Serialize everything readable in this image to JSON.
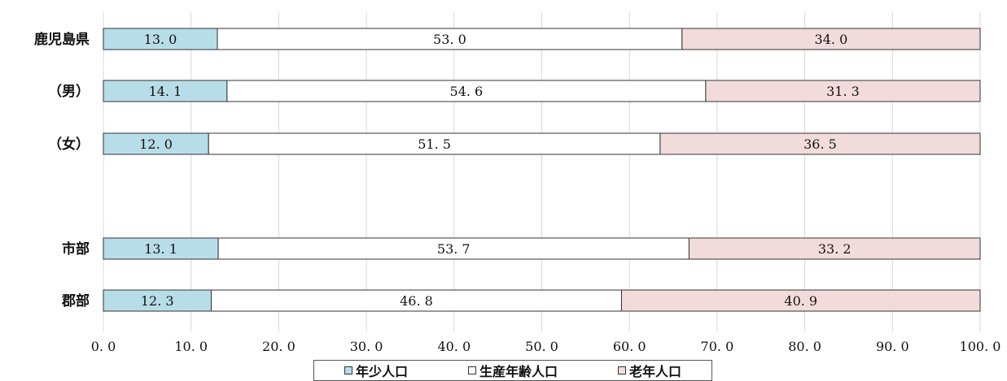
{
  "chart_data": {
    "type": "bar",
    "orientation": "horizontal",
    "stacked": true,
    "categories": [
      "鹿児島県",
      "（男）",
      "（女）",
      "市部",
      "郡部"
    ],
    "series": [
      {
        "name": "年少人口",
        "values": [
          13.0,
          14.1,
          12.0,
          13.1,
          12.3
        ],
        "labels": [
          "13. 0",
          "14. 1",
          "12. 0",
          "13. 1",
          "12. 3"
        ],
        "color": "#b7dde8"
      },
      {
        "name": "生産年齢人口",
        "values": [
          53.0,
          54.6,
          51.5,
          53.7,
          46.8
        ],
        "labels": [
          "53. 0",
          "54. 6",
          "51. 5",
          "53. 7",
          "46. 8"
        ],
        "color": "#ffffff"
      },
      {
        "name": "老年人口",
        "values": [
          34.0,
          31.3,
          36.5,
          33.2,
          40.9
        ],
        "labels": [
          "34. 0",
          "31. 3",
          "36. 5",
          "33. 2",
          "40. 9"
        ],
        "color": "#f2dcdb"
      }
    ],
    "xlim": [
      0,
      100
    ],
    "xticks": [
      "0. 0",
      "10. 0",
      "20. 0",
      "30. 0",
      "40. 0",
      "50. 0",
      "60. 0",
      "70. 0",
      "80. 0",
      "90. 0",
      "100. 0"
    ],
    "grid": true,
    "legend_position": "bottom"
  }
}
